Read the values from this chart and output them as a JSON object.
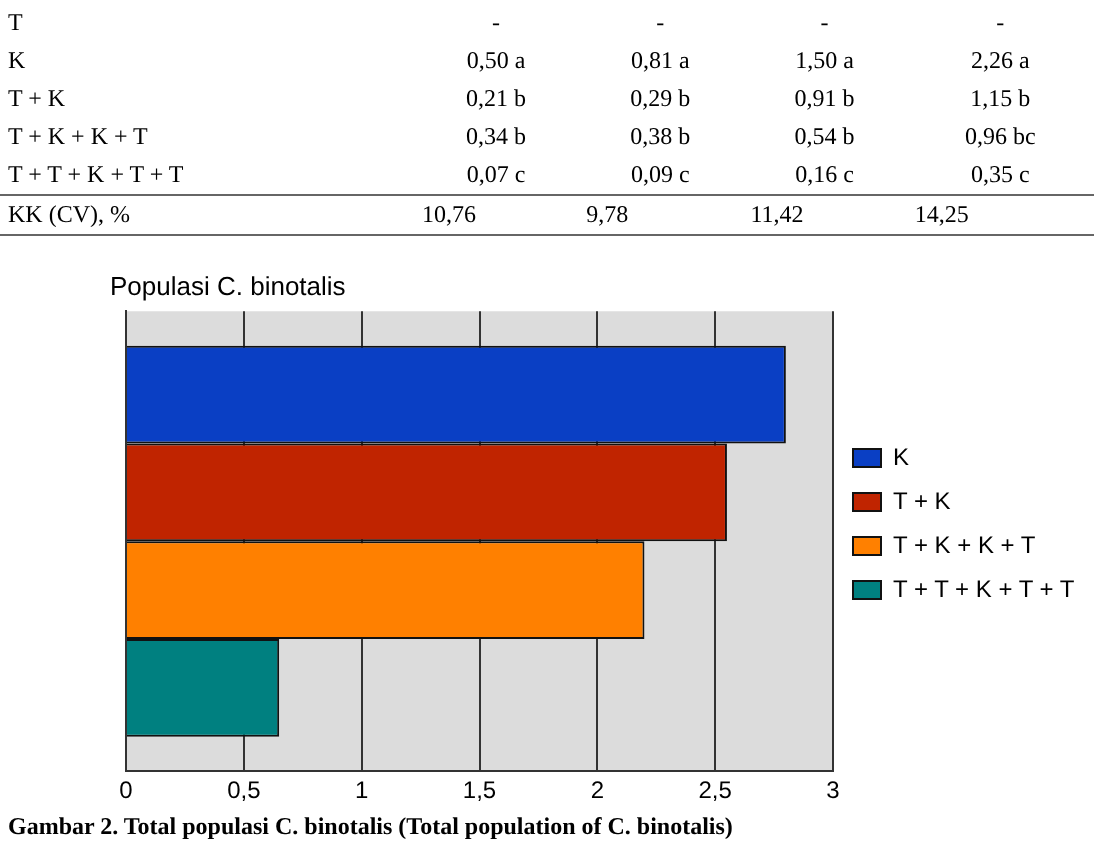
{
  "chart_data": {
    "type": "bar",
    "title": "Populasi C. binotalis",
    "orientation": "horizontal",
    "categories": [
      null
    ],
    "series": [
      {
        "name": "K",
        "color": "#0a3fc4",
        "values": [
          2.8
        ]
      },
      {
        "name": "T + K",
        "color": "#c02400",
        "values": [
          2.55
        ]
      },
      {
        "name": "T + K + K + T",
        "color": "#ff8000",
        "values": [
          2.2
        ]
      },
      {
        "name": "T + T + K + T + T",
        "color": "#008080",
        "values": [
          0.65
        ]
      }
    ],
    "xlim": [
      0,
      3
    ],
    "xticks": [
      0,
      {
        "value": 0.5,
        "label": "0,5"
      },
      1,
      {
        "value": 1.5,
        "label": "1,5"
      },
      2,
      {
        "value": 2.5,
        "label": "2,5"
      },
      3
    ],
    "grid": "x",
    "legend": "right",
    "tick_labels": "x",
    "annotations": [
      "T\t-\t-\t-\t-",
      "K\t0,50 a\t0,81 a\t1,50 a\t2,26 a",
      "T + K\t0,21 b\t0,29 b\t0,91 b\t1,15 b",
      "T + K + K + T\t0,34 b\t0,38 b\t0,54 b\t0,96 bc",
      "T + T + K + T + T\t0,07 c\t0,09 c\t0,16 c\t0,35 c",
      "KK (CV), %\t10,76\t9,78\t11,42\t14,25",
      "Gambar 2.    Total populasi C. binotalis (Total population of C. binotalis)"
    ]
  }
}
